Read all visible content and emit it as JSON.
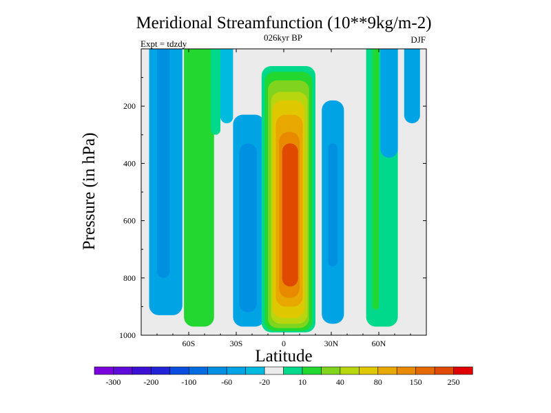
{
  "chart_data": {
    "type": "heatmap",
    "title": "Meridional Streamfunction (10**9kg/m-2)",
    "subtitle_center": "026kyr BP",
    "subtitle_left": "Expt = tdzdy",
    "subtitle_right": "DJF",
    "xlabel": "Latitude",
    "ylabel": "Pressure (in hPa)",
    "xlim": [
      -90,
      90
    ],
    "ylim": [
      0,
      1000
    ],
    "y_inverted": true,
    "x_ticks": [
      {
        "value": -60,
        "label": "60S"
      },
      {
        "value": -30,
        "label": "30S"
      },
      {
        "value": 0,
        "label": "0"
      },
      {
        "value": 30,
        "label": "30N"
      },
      {
        "value": 60,
        "label": "60N"
      }
    ],
    "y_ticks": [
      {
        "value": 200,
        "label": "200"
      },
      {
        "value": 400,
        "label": "400"
      },
      {
        "value": 600,
        "label": "600"
      },
      {
        "value": 800,
        "label": "800"
      },
      {
        "value": 1000,
        "label": "1000"
      }
    ],
    "colorbar": {
      "colors": [
        "#7a00dc",
        "#5e0ad8",
        "#3c10d2",
        "#2222d6",
        "#0a4ee0",
        "#006ce0",
        "#0090e2",
        "#00a4e4",
        "#00bae0",
        "#ebebeb",
        "#00d88c",
        "#22d830",
        "#80d41e",
        "#b8d610",
        "#e0c800",
        "#e8a800",
        "#e88a00",
        "#e46a00",
        "#e04a00",
        "#e00000"
      ],
      "labels": [
        "-300",
        "-200",
        "-100",
        "-60",
        "-20",
        "10",
        "40",
        "80",
        "150",
        "250"
      ]
    },
    "regions": [
      {
        "name": "sh-polar-cell",
        "color": "#00a4e4",
        "lat_min": -85,
        "lat_max": -64,
        "p_top": 0,
        "p_bottom": 930
      },
      {
        "name": "sh-polar-core",
        "color": "#0090e2",
        "lat_min": -80,
        "lat_max": -72,
        "p_top": 0,
        "p_bottom": 800
      },
      {
        "name": "sh-ferrel-cell",
        "color": "#22d830",
        "lat_min": -63,
        "lat_max": -44,
        "p_top": 0,
        "p_bottom": 970
      },
      {
        "name": "sh-ferrel-edge",
        "color": "#00d88c",
        "lat_min": -46,
        "lat_max": -40,
        "p_top": 0,
        "p_bottom": 300
      },
      {
        "name": "sh-hadley-cell",
        "color": "#00a4e4",
        "lat_min": -32,
        "lat_max": -12,
        "p_top": 230,
        "p_bottom": 970
      },
      {
        "name": "sh-hadley-core",
        "color": "#0090e2",
        "lat_min": -28,
        "lat_max": -17,
        "p_top": 330,
        "p_bottom": 920
      },
      {
        "name": "sh-hadley-top",
        "color": "#00bae0",
        "lat_min": -40,
        "lat_max": -32,
        "p_top": 0,
        "p_bottom": 260
      },
      {
        "name": "eq-hadley-10",
        "color": "#00d88c",
        "lat_min": -14,
        "lat_max": 20,
        "p_top": 60,
        "p_bottom": 990
      },
      {
        "name": "eq-hadley-40",
        "color": "#22d830",
        "lat_min": -12,
        "lat_max": 18,
        "p_top": 80,
        "p_bottom": 985
      },
      {
        "name": "eq-hadley-60",
        "color": "#80d41e",
        "lat_min": -10,
        "lat_max": 16,
        "p_top": 110,
        "p_bottom": 975
      },
      {
        "name": "eq-hadley-80",
        "color": "#b8d610",
        "lat_min": -8,
        "lat_max": 15,
        "p_top": 150,
        "p_bottom": 960
      },
      {
        "name": "eq-hadley-100",
        "color": "#e0c800",
        "lat_min": -7,
        "lat_max": 13,
        "p_top": 180,
        "p_bottom": 940
      },
      {
        "name": "eq-hadley-150",
        "color": "#e8a800",
        "lat_min": -5,
        "lat_max": 12,
        "p_top": 230,
        "p_bottom": 900
      },
      {
        "name": "eq-hadley-200",
        "color": "#e88a00",
        "lat_min": -3,
        "lat_max": 10,
        "p_top": 290,
        "p_bottom": 870
      },
      {
        "name": "eq-hadley-250",
        "color": "#e04a00",
        "lat_min": -1,
        "lat_max": 9,
        "p_top": 330,
        "p_bottom": 830
      },
      {
        "name": "nh-ferrel-cell",
        "color": "#00a4e4",
        "lat_min": 24,
        "lat_max": 38,
        "p_top": 180,
        "p_bottom": 960
      },
      {
        "name": "nh-ferrel-core",
        "color": "#0090e2",
        "lat_min": 28,
        "lat_max": 34,
        "p_top": 330,
        "p_bottom": 760
      },
      {
        "name": "nh-mid-green",
        "color": "#00d88c",
        "lat_min": 52,
        "lat_max": 72,
        "p_top": 0,
        "p_bottom": 970
      },
      {
        "name": "nh-mid-core",
        "color": "#22d830",
        "lat_min": 56,
        "lat_max": 60,
        "p_top": 0,
        "p_bottom": 910
      },
      {
        "name": "nh-polar-cell",
        "color": "#00a4e4",
        "lat_min": 61,
        "lat_max": 72,
        "p_top": 0,
        "p_bottom": 380
      },
      {
        "name": "nh-polar-top",
        "color": "#00a4e4",
        "lat_min": 76,
        "lat_max": 86,
        "p_top": 0,
        "p_bottom": 260
      }
    ]
  }
}
